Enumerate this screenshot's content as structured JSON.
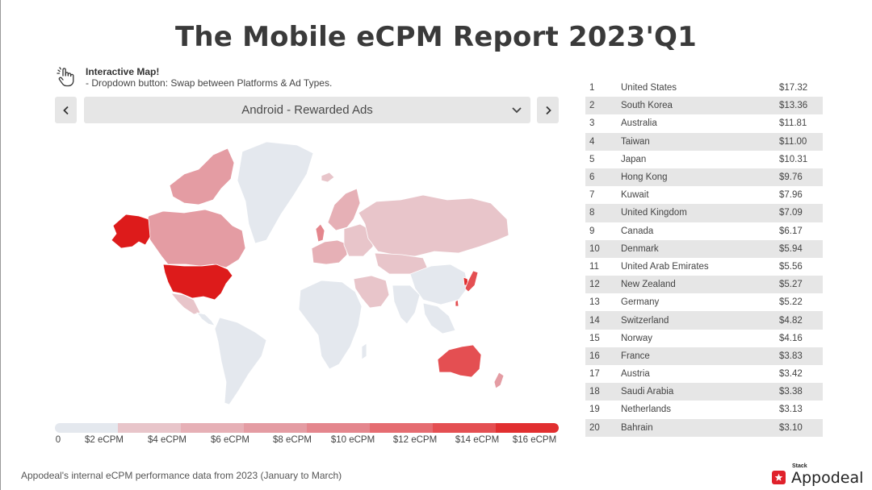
{
  "title": "The Mobile eCPM Report 2023'Q1",
  "hint": {
    "icon": "pointing-hand-icon",
    "title": "Interactive Map!",
    "description": "- Dropdown button: Swap between Platforms & Ad Types."
  },
  "selector": {
    "prev_icon": "chevron-left-icon",
    "next_icon": "chevron-right-icon",
    "value": "Android - Rewarded Ads"
  },
  "legend": {
    "labels": [
      "0",
      "$2 eCPM",
      "$4 eCPM",
      "$6 eCPM",
      "$8 eCPM",
      "$10 eCPM",
      "$12 eCPM",
      "$14 eCPM",
      "$16 eCPM"
    ],
    "colors": [
      "#e4e8ee",
      "#e8c5ca",
      "#e6b0b6",
      "#e49ca3",
      "#e4868d",
      "#e56c71",
      "#e44f52",
      "#e12f30",
      "#dd1b1b"
    ]
  },
  "ranking": [
    {
      "rank": "1",
      "country": "United States",
      "value": "$17.32"
    },
    {
      "rank": "2",
      "country": "South Korea",
      "value": "$13.36"
    },
    {
      "rank": "3",
      "country": "Australia",
      "value": "$11.81"
    },
    {
      "rank": "4",
      "country": "Taiwan",
      "value": "$11.00"
    },
    {
      "rank": "5",
      "country": "Japan",
      "value": "$10.31"
    },
    {
      "rank": "6",
      "country": "Hong Kong",
      "value": "$9.76"
    },
    {
      "rank": "7",
      "country": "Kuwait",
      "value": "$7.96"
    },
    {
      "rank": "8",
      "country": "United Kingdom",
      "value": "$7.09"
    },
    {
      "rank": "9",
      "country": "Canada",
      "value": "$6.17"
    },
    {
      "rank": "10",
      "country": "Denmark",
      "value": "$5.94"
    },
    {
      "rank": "11",
      "country": "United Arab Emirates",
      "value": "$5.56"
    },
    {
      "rank": "12",
      "country": "New Zealand",
      "value": "$5.27"
    },
    {
      "rank": "13",
      "country": "Germany",
      "value": "$5.22"
    },
    {
      "rank": "14",
      "country": "Switzerland",
      "value": "$4.82"
    },
    {
      "rank": "15",
      "country": "Norway",
      "value": "$4.16"
    },
    {
      "rank": "16",
      "country": "France",
      "value": "$3.83"
    },
    {
      "rank": "17",
      "country": "Austria",
      "value": "$3.42"
    },
    {
      "rank": "18",
      "country": "Saudi Arabia",
      "value": "$3.38"
    },
    {
      "rank": "19",
      "country": "Netherlands",
      "value": "$3.13"
    },
    {
      "rank": "20",
      "country": "Bahrain",
      "value": "$3.10"
    }
  ],
  "footnote": "Appodeal's internal eCPM performance data from 2023 (January to March)",
  "brand": {
    "small": "Stack",
    "name": "Appodeal",
    "icon": "star-icon"
  }
}
